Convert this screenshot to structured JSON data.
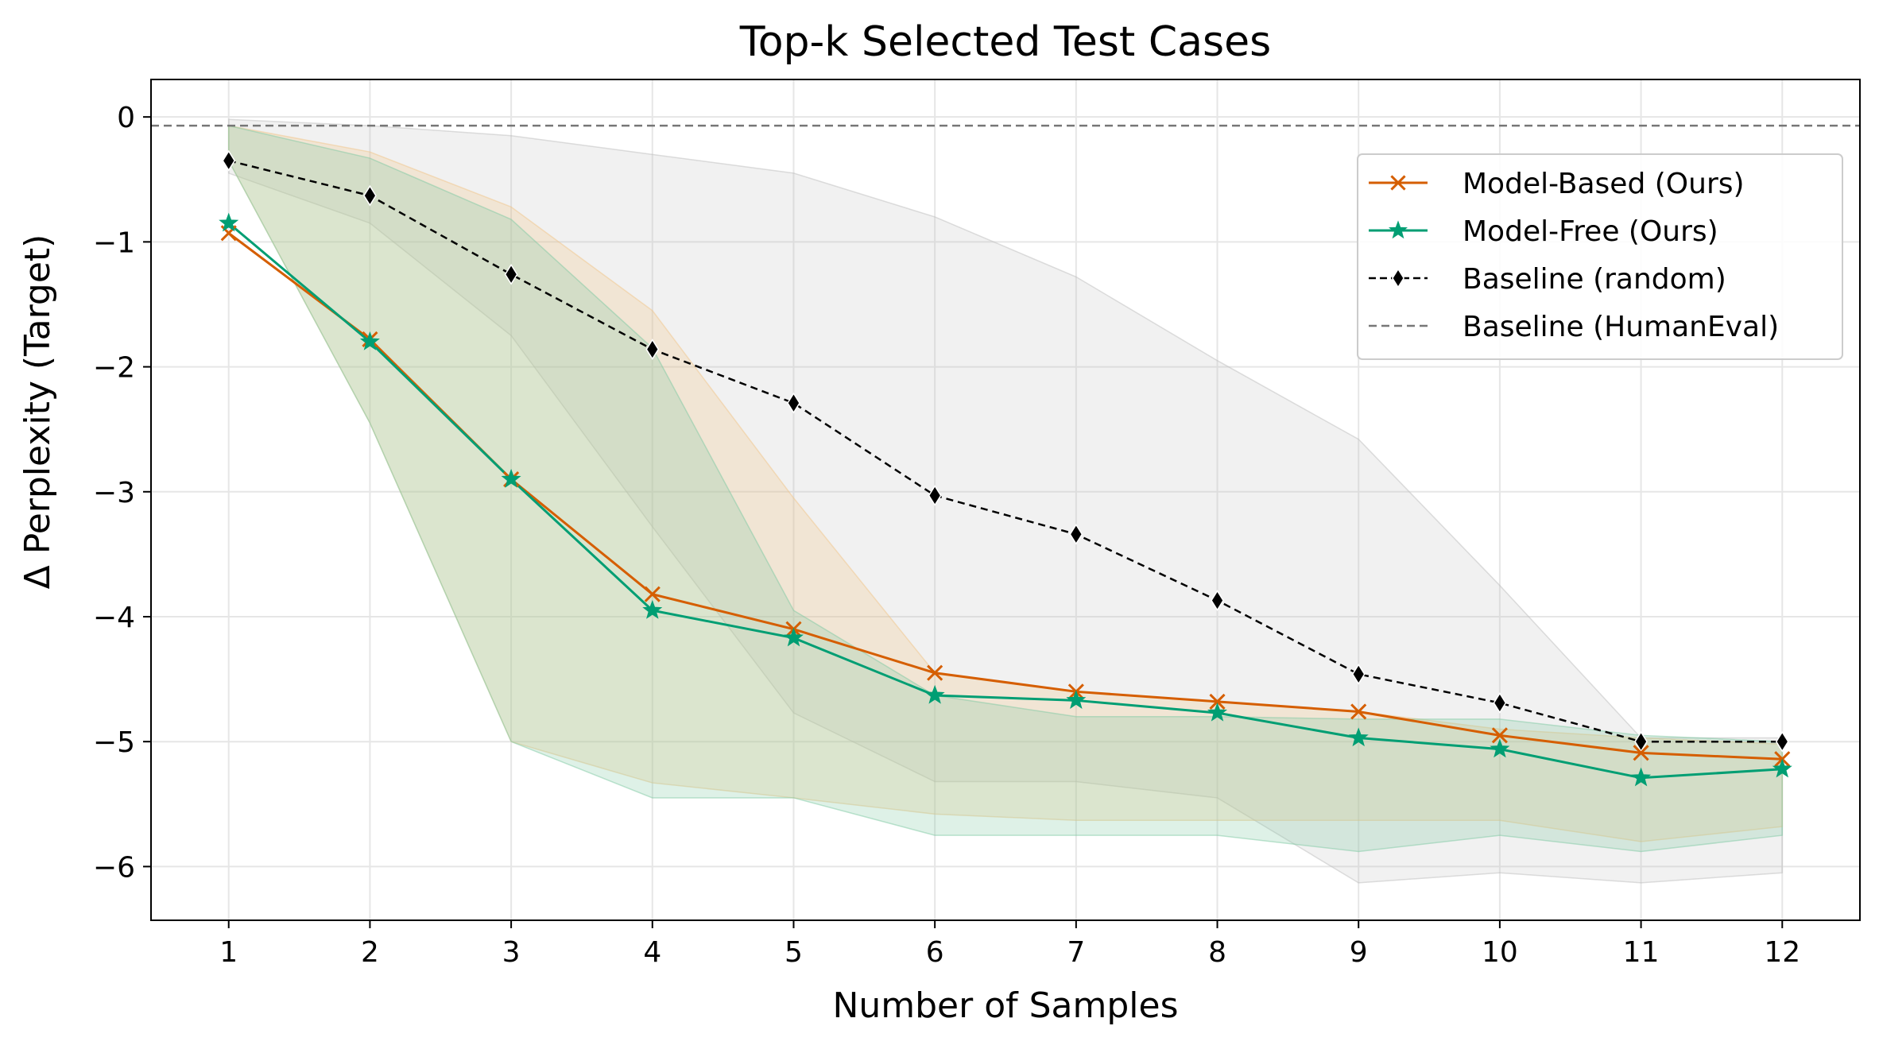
{
  "chart_data": {
    "type": "line",
    "title": "Top-k Selected Test Cases",
    "xlabel": "Number of Samples",
    "ylabel": "Δ Perplexity (Target)",
    "x": [
      1,
      2,
      3,
      4,
      5,
      6,
      7,
      8,
      9,
      10,
      11,
      12
    ],
    "xlim": [
      0.45,
      12.55
    ],
    "ylim": [
      -6.43,
      0.3
    ],
    "yticks": [
      0,
      -1,
      -2,
      -3,
      -4,
      -5,
      -6
    ],
    "ytick_labels": [
      "0",
      "−1",
      "−2",
      "−3",
      "−4",
      "−5",
      "−6"
    ],
    "grid": true,
    "legend_position": "upper right",
    "series": [
      {
        "name": "Model-Based (Ours)",
        "color": "#d55e00",
        "marker": "x",
        "linestyle": "solid",
        "values": [
          -0.93,
          -1.78,
          -2.9,
          -3.82,
          -4.1,
          -4.45,
          -4.6,
          -4.68,
          -4.76,
          -4.95,
          -5.09,
          -5.14
        ],
        "band_upper": [
          -0.07,
          -0.28,
          -0.72,
          -1.55,
          -3.05,
          -4.45,
          -4.6,
          -4.68,
          -4.76,
          -4.9,
          -4.97,
          -5.02
        ],
        "band_lower": [
          -0.35,
          -2.45,
          -5.0,
          -5.33,
          -5.45,
          -5.58,
          -5.63,
          -5.63,
          -5.63,
          -5.63,
          -5.8,
          -5.68
        ]
      },
      {
        "name": "Model-Free (Ours)",
        "color": "#009e73",
        "marker": "*",
        "linestyle": "solid",
        "values": [
          -0.85,
          -1.8,
          -2.9,
          -3.95,
          -4.17,
          -4.63,
          -4.67,
          -4.77,
          -4.97,
          -5.06,
          -5.29,
          -5.22
        ],
        "band_upper": [
          -0.07,
          -0.33,
          -0.82,
          -1.85,
          -3.95,
          -4.63,
          -4.8,
          -4.8,
          -4.82,
          -4.82,
          -4.95,
          -5.0
        ],
        "band_lower": [
          -0.35,
          -2.45,
          -5.0,
          -5.45,
          -5.45,
          -5.75,
          -5.75,
          -5.75,
          -5.88,
          -5.75,
          -5.88,
          -5.75
        ]
      },
      {
        "name": "Baseline (random)",
        "color": "#000000",
        "marker": "d",
        "linestyle": "dashed",
        "values": [
          -0.35,
          -0.63,
          -1.26,
          -1.86,
          -2.29,
          -3.03,
          -3.34,
          -3.87,
          -4.46,
          -4.69,
          -5.0,
          -5.0
        ],
        "band_upper": [
          -0.02,
          -0.07,
          -0.15,
          -0.3,
          -0.45,
          -0.8,
          -1.28,
          -1.95,
          -2.58,
          -3.75,
          -4.97,
          -4.97
        ],
        "band_lower": [
          -0.45,
          -0.85,
          -1.75,
          -3.28,
          -4.77,
          -5.32,
          -5.32,
          -5.45,
          -6.13,
          -6.05,
          -6.13,
          -6.05
        ]
      },
      {
        "name": "Baseline (HumanEval)",
        "color": "#777777",
        "marker": "none",
        "linestyle": "dashed",
        "value": -0.07
      }
    ]
  }
}
